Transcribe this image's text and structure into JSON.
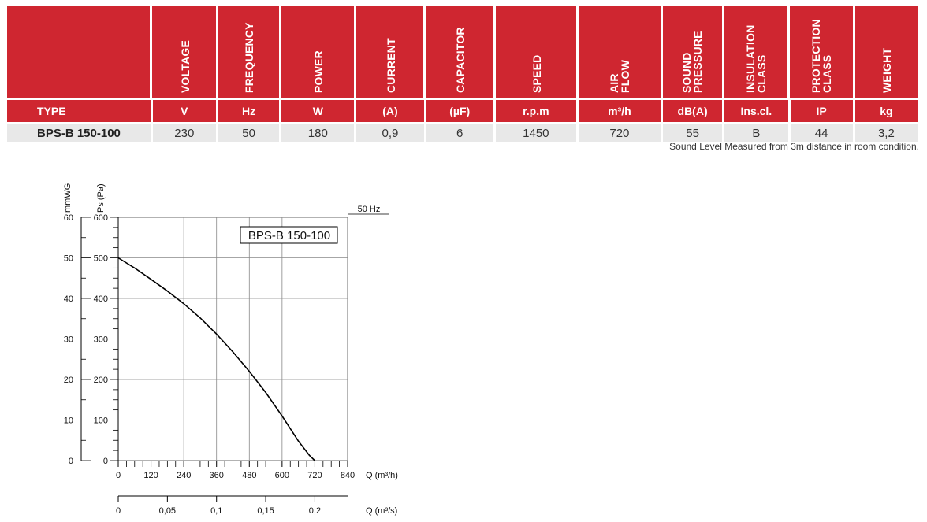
{
  "table": {
    "type_label": "TYPE",
    "columns": [
      {
        "header": "VOLTAGE",
        "unit": "V",
        "value": "230"
      },
      {
        "header": "FREQUENCY",
        "unit": "Hz",
        "value": "50"
      },
      {
        "header": "POWER",
        "unit": "W",
        "value": "180"
      },
      {
        "header": "CURRENT",
        "unit": "(A)",
        "value": "0,9"
      },
      {
        "header": "CAPACITOR",
        "unit": "(µF)",
        "value": "6"
      },
      {
        "header": "SPEED",
        "unit": "r.p.m",
        "value": "1450"
      },
      {
        "header": "AIR FLOW",
        "unit": "m³/h",
        "value": "720"
      },
      {
        "header": "SOUND PRESSURE",
        "unit": "dB(A)",
        "value": "55"
      },
      {
        "header": "INSULATION CLASS",
        "unit": "Ins.cl.",
        "value": "B"
      },
      {
        "header": "PROTECTION CLASS",
        "unit": "IP",
        "value": "44"
      },
      {
        "header": "WEIGHT",
        "unit": "kg",
        "value": "3,2"
      }
    ],
    "model": "BPS-B 150-100",
    "note": "Sound Level Measured from 3m distance in room condition."
  },
  "colors": {
    "header_red": "#cf2630",
    "row_grey": "#e8e8e8"
  },
  "chart_data": {
    "type": "line",
    "legend": "BPS-B 150-100",
    "frequency_label": "50 Hz",
    "x": [
      0,
      60,
      120,
      180,
      240,
      300,
      360,
      420,
      480,
      540,
      600,
      660,
      700,
      720
    ],
    "y": [
      500,
      475,
      447,
      418,
      387,
      352,
      312,
      268,
      220,
      168,
      110,
      48,
      13,
      0
    ],
    "xlabel": "Q (m³/h)",
    "x2label": "Q (m³/s)",
    "ylabel": "Ps (Pa)",
    "y2label": "mmWG",
    "xlim": [
      0,
      840
    ],
    "ylim": [
      0,
      600
    ],
    "x_ticks": [
      "0",
      "120",
      "240",
      "360",
      "480",
      "600",
      "720",
      "840"
    ],
    "x2_ticks": [
      "0",
      "0,05",
      "0,1",
      "0,15",
      "0,2"
    ],
    "x2_values": [
      0,
      0.05,
      0.1,
      0.15,
      0.2
    ],
    "y_ticks": [
      "0",
      "100",
      "200",
      "300",
      "400",
      "500",
      "600"
    ],
    "y2_ticks": [
      "0",
      "10",
      "20",
      "30",
      "40",
      "50",
      "60"
    ],
    "grid": true
  }
}
